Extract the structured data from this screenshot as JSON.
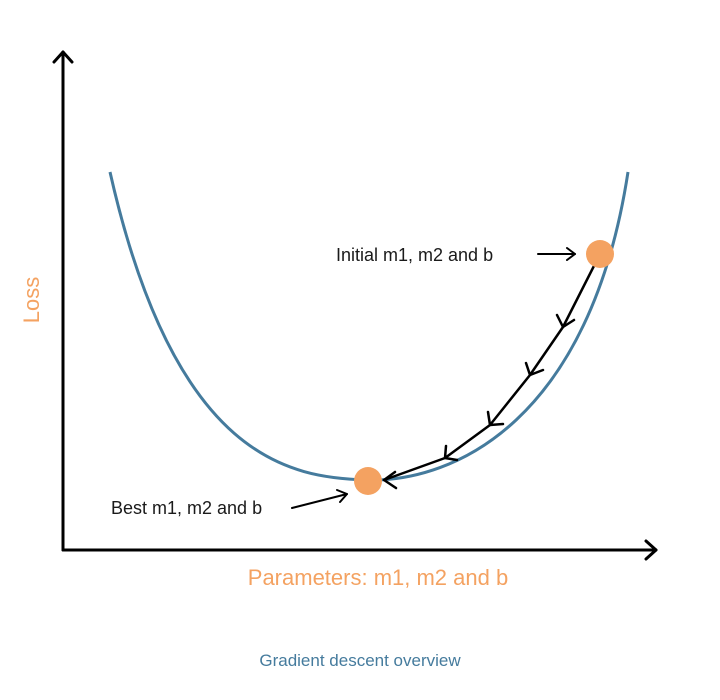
{
  "labels": {
    "y_axis": "Loss",
    "x_axis": "Parameters: m1, m2 and b",
    "initial": "Initial m1, m2 and b",
    "best": "Best m1, m2 and b",
    "caption": "Gradient descent overview"
  },
  "colors": {
    "curve": "#457b9d",
    "point": "#f4a261",
    "axis_label": "#f4a261",
    "caption": "#457b9d",
    "axes": "#000000",
    "text": "#1a1a1a"
  },
  "steps_shown": 5
}
